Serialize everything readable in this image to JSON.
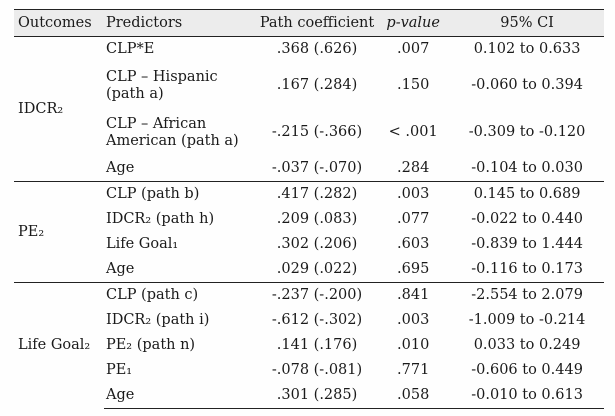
{
  "headers": {
    "outcomes": "Outcomes",
    "predictors": "Predictors",
    "path_coefficient": "Path coefficient",
    "p_value": "p-value",
    "ci": "95% CI"
  },
  "groups": [
    {
      "outcome": "IDCR₂",
      "rows": [
        {
          "predictor": "CLP*E",
          "path": ".368 (.626)",
          "p": ".007",
          "ci": "0.102 to 0.633"
        },
        {
          "predictor": "CLP – Hispanic (path a)",
          "path": ".167 (.284)",
          "p": ".150",
          "ci": "-0.060 to 0.394"
        },
        {
          "predictor": "CLP – African American (path a)",
          "path": "-.215 (-.366)",
          "p": "< .001",
          "ci": "-0.309 to -0.120"
        },
        {
          "predictor": "Age",
          "path": "-.037 (-.070)",
          "p": ".284",
          "ci": "-0.104 to 0.030"
        }
      ]
    },
    {
      "outcome": "PE₂",
      "rows": [
        {
          "predictor": "CLP (path b)",
          "path": ".417 (.282)",
          "p": ".003",
          "ci": "0.145 to 0.689"
        },
        {
          "predictor": "IDCR₂ (path h)",
          "path": ".209 (.083)",
          "p": ".077",
          "ci": "-0.022 to 0.440"
        },
        {
          "predictor": "Life Goal₁",
          "path": ".302 (.206)",
          "p": ".603",
          "ci": "-0.839 to 1.444"
        },
        {
          "predictor": "Age",
          "path": ".029 (.022)",
          "p": ".695",
          "ci": "-0.116 to 0.173"
        }
      ]
    },
    {
      "outcome": "Life Goal₂",
      "rows": [
        {
          "predictor": "CLP (path c)",
          "path": "-.237 (-.200)",
          "p": ".841",
          "ci": "-2.554 to 2.079"
        },
        {
          "predictor": "IDCR₂ (path i)",
          "path": "-.612 (-.302)",
          "p": ".003",
          "ci": "-1.009 to -0.214"
        },
        {
          "predictor": "PE₂ (path n)",
          "path": ".141 (.176)",
          "p": ".010",
          "ci": "0.033 to 0.249"
        },
        {
          "predictor": "PE₁",
          "path": "-.078 (-.081)",
          "p": ".771",
          "ci": "-0.606 to 0.449"
        },
        {
          "predictor": "Age",
          "path": ".301 (.285)",
          "p": ".058",
          "ci": "-0.010 to 0.613"
        }
      ]
    }
  ]
}
